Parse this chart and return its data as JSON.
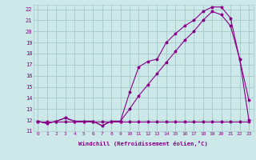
{
  "xlabel": "Windchill (Refroidissement éolien,°C)",
  "bg_color": "#cce8e8",
  "grid_color": "#aacccc",
  "line_color": "#880088",
  "xlim": [
    -0.5,
    23.5
  ],
  "ylim": [
    11.0,
    22.4
  ],
  "yticks": [
    11,
    12,
    13,
    14,
    15,
    16,
    17,
    18,
    19,
    20,
    21,
    22
  ],
  "xticks": [
    0,
    1,
    2,
    3,
    4,
    5,
    6,
    7,
    8,
    9,
    10,
    11,
    12,
    13,
    14,
    15,
    16,
    17,
    18,
    19,
    20,
    21,
    22,
    23
  ],
  "series": [
    [
      11.9,
      11.7,
      11.9,
      12.2,
      11.9,
      11.9,
      11.9,
      11.5,
      11.9,
      11.9,
      14.5,
      16.8,
      17.3,
      17.5,
      19.0,
      19.8,
      20.5,
      21.0,
      21.8,
      22.2,
      22.2,
      21.2,
      17.5,
      12.0
    ],
    [
      11.9,
      11.7,
      11.9,
      12.2,
      11.9,
      11.9,
      11.9,
      11.5,
      11.9,
      11.9,
      13.0,
      14.2,
      15.2,
      16.2,
      17.2,
      18.2,
      19.2,
      20.0,
      21.0,
      21.8,
      21.5,
      20.5,
      17.5,
      13.8
    ],
    [
      11.9,
      11.9,
      11.9,
      11.9,
      11.9,
      11.9,
      11.9,
      11.9,
      11.9,
      11.9,
      11.9,
      11.9,
      11.9,
      11.9,
      11.9,
      11.9,
      11.9,
      11.9,
      11.9,
      11.9,
      11.9,
      11.9,
      11.9,
      11.9
    ]
  ]
}
